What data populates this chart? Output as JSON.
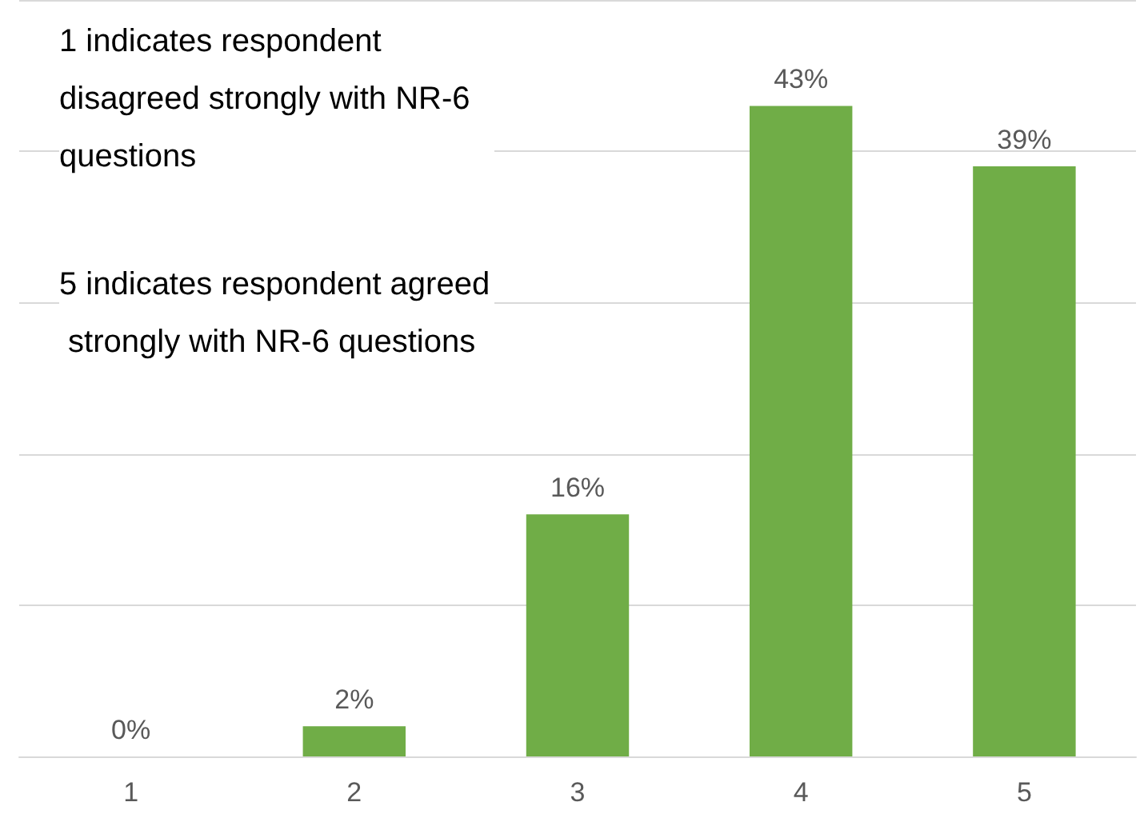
{
  "chart_data": {
    "type": "bar",
    "categories": [
      "1",
      "2",
      "3",
      "4",
      "5"
    ],
    "values": [
      0,
      2,
      16,
      43,
      39
    ],
    "value_labels": [
      "0%",
      "2%",
      "16%",
      "43%",
      "39%"
    ],
    "color": "#70ad47",
    "tick_labels": "x",
    "grid": "y",
    "annotations": [
      "1 indicates respondent disagreed strongly with NR-6 questions",
      "5 indicates respondent agreed strongly with NR-6 questions"
    ]
  }
}
